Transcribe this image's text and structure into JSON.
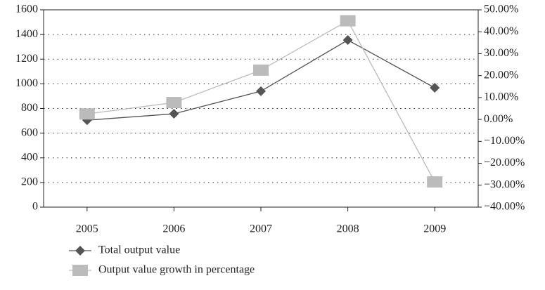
{
  "chart_data": {
    "type": "line",
    "categories": [
      "2005",
      "2006",
      "2007",
      "2008",
      "2009"
    ],
    "series": [
      {
        "name": "Total output value",
        "color": "#555555",
        "marker": "diamond",
        "values": [
          705,
          757,
          940,
          1355,
          968
        ]
      },
      {
        "name": "Output value growth in percentage",
        "color": "#bbbbbb",
        "marker": "square",
        "axis": "y2",
        "values": [
          2.5,
          7.7,
          22.5,
          45,
          -28.5
        ]
      }
    ],
    "ylim": [
      0,
      1600
    ],
    "yticks": [
      0,
      200,
      400,
      600,
      800,
      1000,
      1200,
      1400,
      1600
    ],
    "y2lim": [
      -40,
      50
    ],
    "y2ticks": [
      {
        "value": -40,
        "label": "−40.00%"
      },
      {
        "value": -30,
        "label": "−30.00%"
      },
      {
        "value": -20,
        "label": "−20.00%"
      },
      {
        "value": -10,
        "label": "−10.00%"
      },
      {
        "value": 0,
        "label": "0.00%"
      },
      {
        "value": 10,
        "label": "10.00%"
      },
      {
        "value": 20,
        "label": "20.00%"
      },
      {
        "value": 30,
        "label": "30.00%"
      },
      {
        "value": 40,
        "label": "40.00%"
      },
      {
        "value": 50,
        "label": "50.00%"
      }
    ],
    "grid": true,
    "legend": "bottom"
  }
}
